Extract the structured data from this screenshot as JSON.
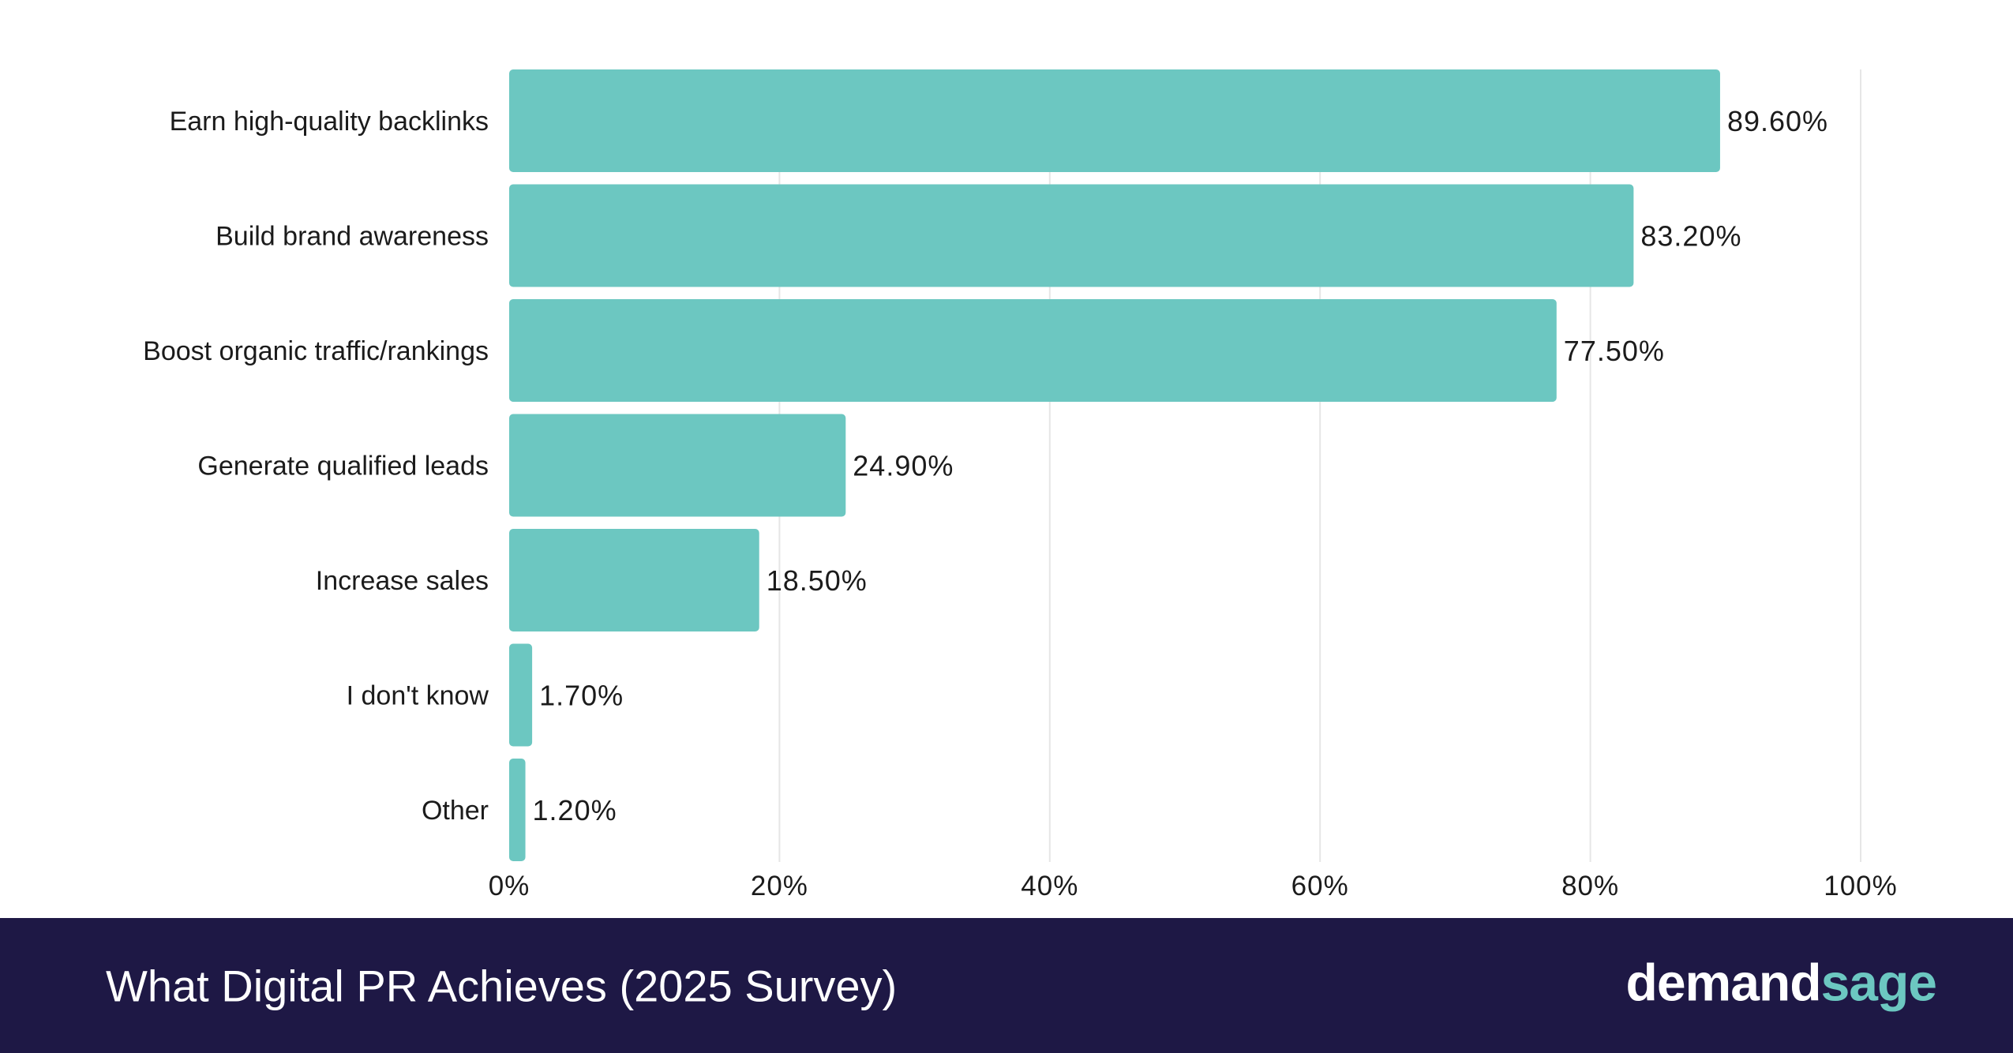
{
  "colors": {
    "bar": "#6cc7c1",
    "grid": "#e6e6e6",
    "text": "#1b1b1b",
    "footer_bg": "#1e1845",
    "footer_text": "#ffffff",
    "brand_accent": "#6cc7c1"
  },
  "chart_data": {
    "type": "bar",
    "orientation": "horizontal",
    "categories": [
      "Earn high-quality backlinks",
      "Build brand awareness",
      "Boost organic traffic/rankings",
      "Generate qualified leads",
      "Increase sales",
      "I don't know",
      "Other"
    ],
    "values": [
      89.6,
      83.2,
      77.5,
      24.9,
      18.5,
      1.7,
      1.2
    ],
    "value_labels": [
      "89.60%",
      "83.20%",
      "77.50%",
      "24.90%",
      "18.50%",
      "1.70%",
      "1.20%"
    ],
    "xlim": [
      0,
      100
    ],
    "x_ticks": [
      0,
      20,
      40,
      60,
      80,
      100
    ],
    "x_tick_labels": [
      "0%",
      "20%",
      "40%",
      "60%",
      "80%",
      "100%"
    ],
    "grid": "vertical",
    "legend": "none"
  },
  "footer": {
    "title": "What Digital PR Achieves (2025 Survey)",
    "brand_part1": "demand",
    "brand_part2": "sage"
  }
}
